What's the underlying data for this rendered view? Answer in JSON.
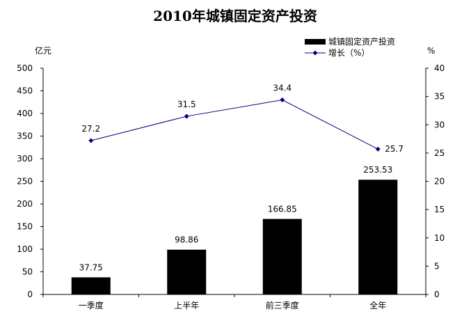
{
  "chart_data": {
    "type": "bar",
    "title": "2010年城镇固定资产投资",
    "categories": [
      "一季度",
      "上半年",
      "前三季度",
      "全年"
    ],
    "series": [
      {
        "name": "城镇固定资产投资",
        "type": "bar",
        "axis": "left",
        "color": "#000000",
        "values": [
          37.75,
          98.86,
          166.85,
          253.53
        ],
        "labels": [
          "37.75",
          "98.86",
          "166.85",
          "253.53"
        ]
      },
      {
        "name": "增长（%）",
        "type": "line",
        "axis": "right",
        "color": "#000080",
        "values": [
          27.2,
          31.5,
          34.4,
          25.7
        ],
        "labels": [
          "27.2",
          "31.5",
          "34.4",
          "25.7"
        ]
      }
    ],
    "ylabel": "亿元",
    "ylim": [
      0,
      500
    ],
    "yticks": [
      "0",
      "50",
      "100",
      "150",
      "200",
      "250",
      "300",
      "350",
      "400",
      "450",
      "500"
    ],
    "y2label": "%",
    "y2lim": [
      0,
      40
    ],
    "y2ticks": [
      "0",
      "5",
      "10",
      "15",
      "20",
      "25",
      "30",
      "35",
      "40"
    ],
    "grid": false,
    "legend": "top-right"
  }
}
